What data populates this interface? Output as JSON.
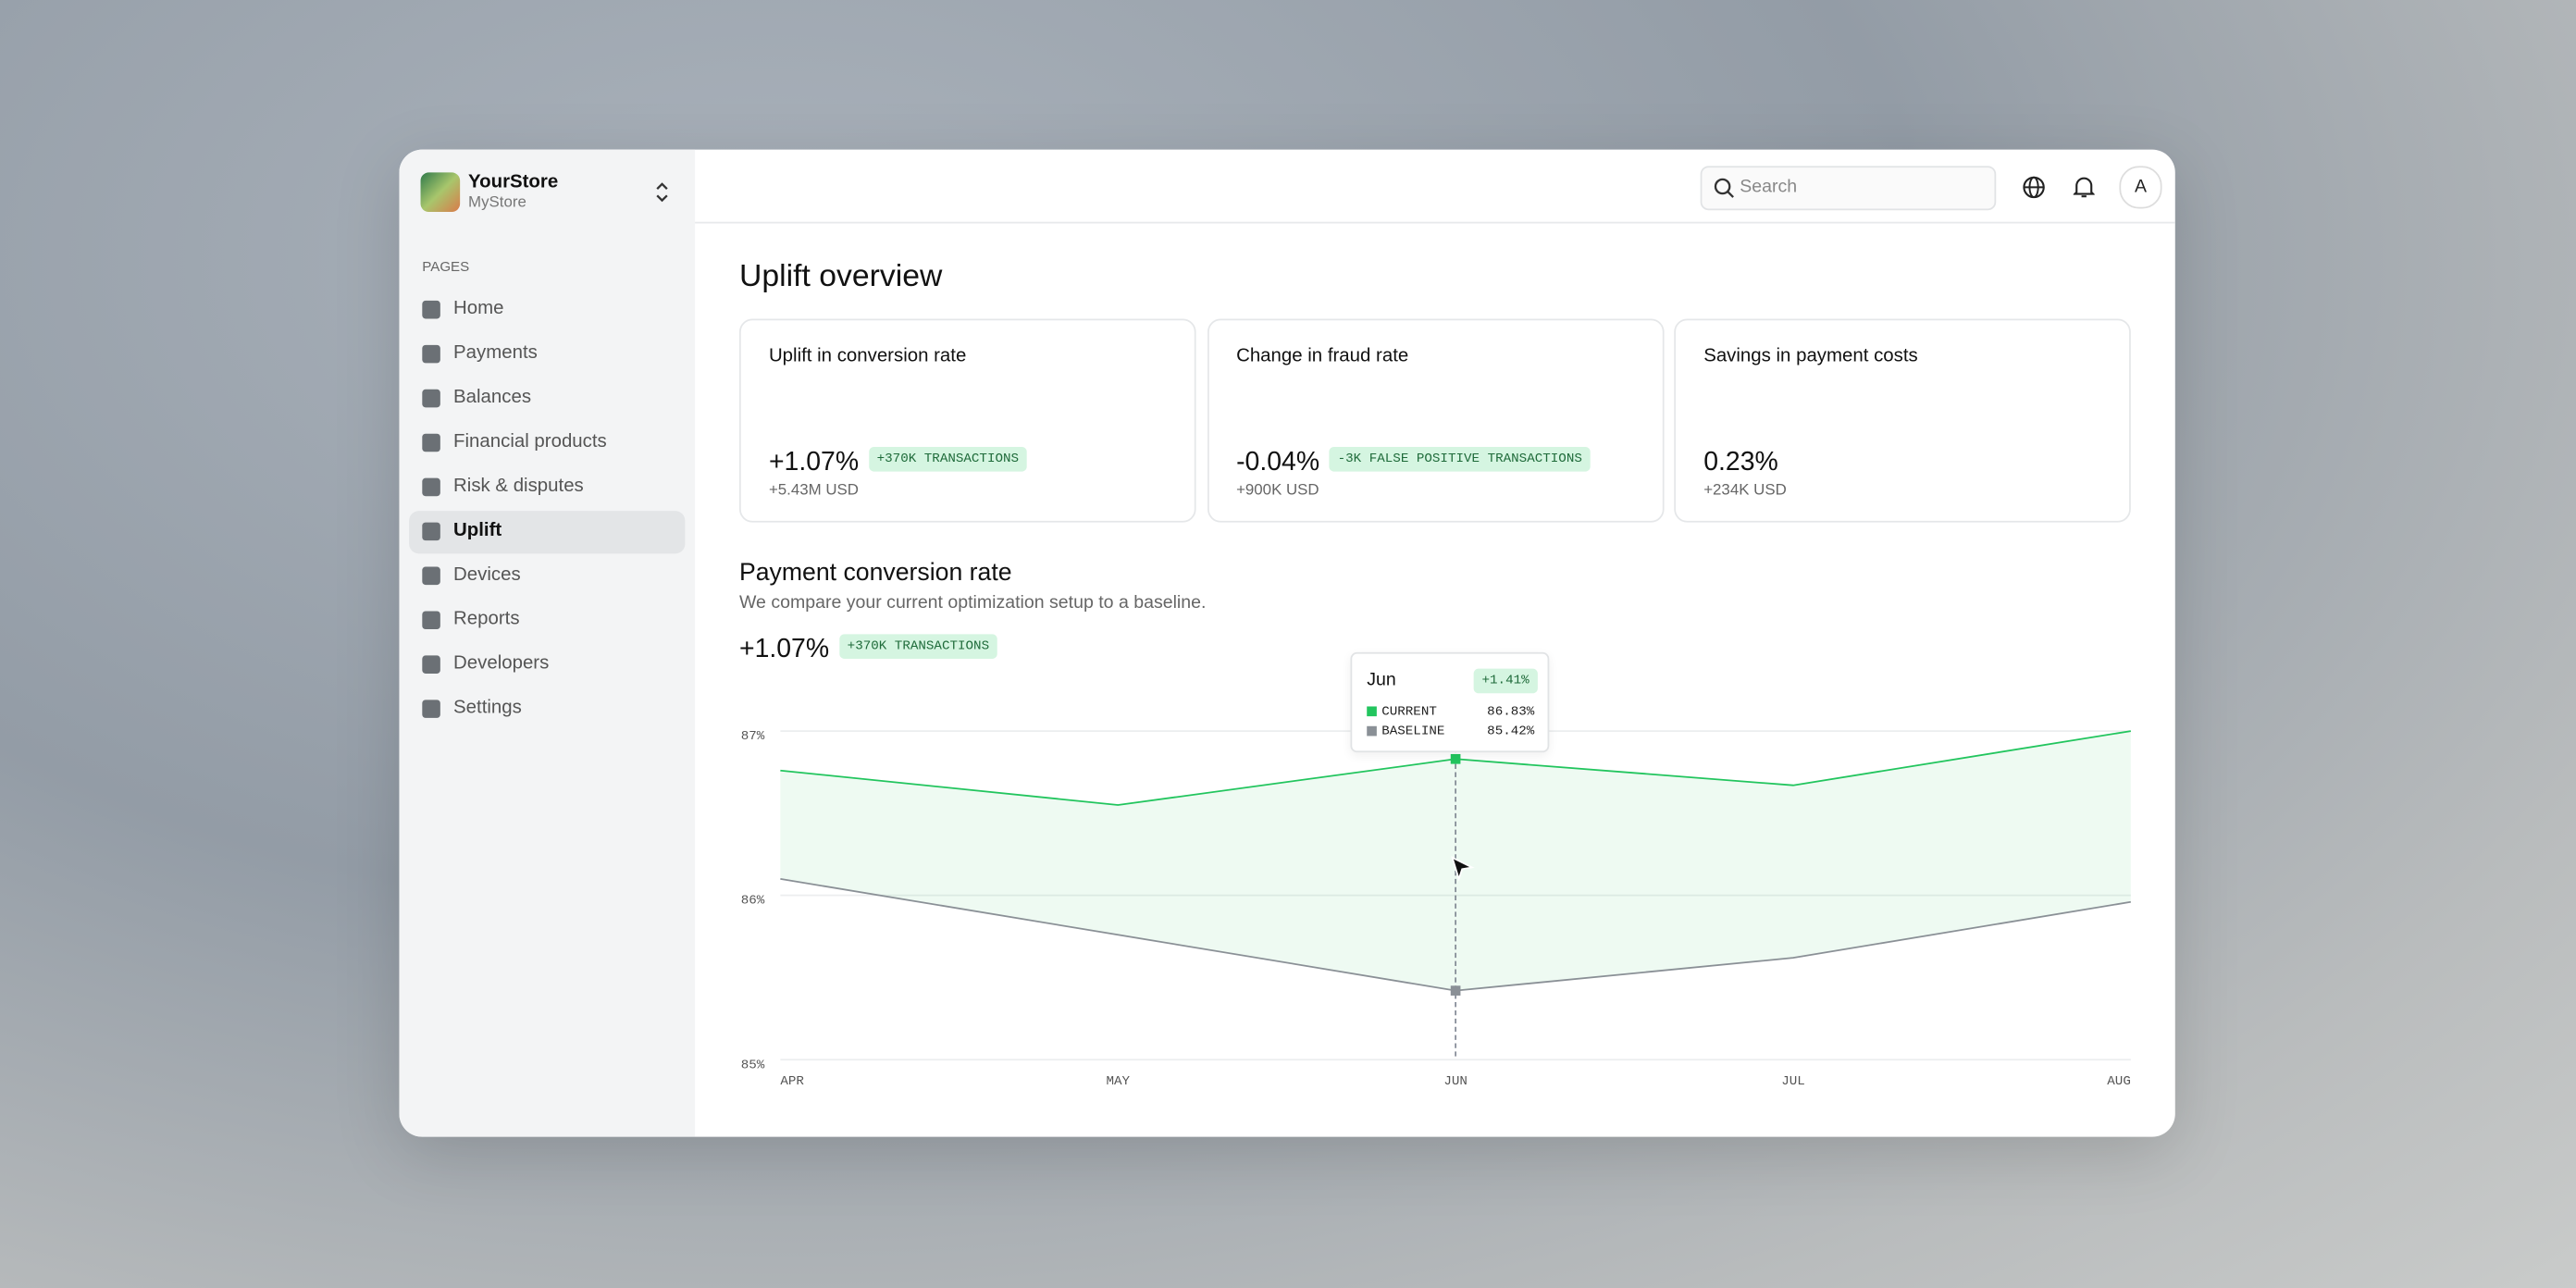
{
  "sidebar": {
    "store_name": "YourStore",
    "store_sub": "MyStore",
    "section": "PAGES",
    "nav": [
      "Home",
      "Payments",
      "Balances",
      "Financial products",
      "Risk & disputes",
      "Uplift",
      "Devices",
      "Reports",
      "Developers",
      "Settings"
    ],
    "active": 5
  },
  "header": {
    "search": "Search",
    "avatar": "A"
  },
  "page": {
    "title": "Uplift overview",
    "cards": [
      {
        "title": "Uplift in conversion rate",
        "value": "+1.07%",
        "badge": "+370K TRANSACTIONS",
        "sub": "+5.43M USD"
      },
      {
        "title": "Change in fraud rate",
        "value": "-0.04%",
        "badge": "-3K FALSE POSITIVE TRANSACTIONS",
        "sub": "+900K USD"
      },
      {
        "title": "Savings in payment costs",
        "value": "0.23%",
        "sub": "+234K USD"
      }
    ]
  },
  "section": {
    "title": "Payment conversion rate",
    "subtitle": "We compare your current optimization setup to a baseline.",
    "value": "+1.07%",
    "badge": "+370K TRANSACTIONS"
  },
  "chart_data": {
    "type": "line",
    "categories": [
      "APR",
      "MAY",
      "JUN",
      "JUL",
      "AUG"
    ],
    "series": [
      {
        "name": "CURRENT",
        "color": "#22c55e",
        "values": [
          86.76,
          86.55,
          86.83,
          86.67,
          87.0
        ]
      },
      {
        "name": "BASELINE",
        "color": "#8a9096",
        "values": [
          86.1,
          85.76,
          85.42,
          85.62,
          85.96
        ]
      }
    ],
    "ylim": [
      85,
      87
    ],
    "yticks": [
      {
        "value": 85,
        "label": "85%"
      },
      {
        "value": 86,
        "label": "86%"
      },
      {
        "value": 87,
        "label": "87%"
      }
    ],
    "grid": true,
    "tooltip": {
      "index": 2,
      "title": "Jun",
      "delta": "+1.41%",
      "values": [
        "86.83%",
        "85.42%"
      ]
    }
  }
}
